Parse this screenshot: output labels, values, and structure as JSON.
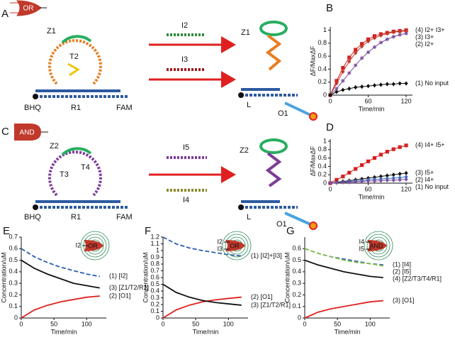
{
  "diagrams": {
    "A": {
      "panel": "A",
      "gate": "OR",
      "hairpin": "Z1",
      "target": "T2",
      "quencher": "BHQ",
      "reporter": "R1",
      "fluor": "FAM",
      "input1": "I2",
      "input2": "I3",
      "product": "Z1",
      "linker": "L",
      "output": "O1"
    },
    "C": {
      "panel": "C",
      "gate": "AND",
      "hairpin": "Z2",
      "target1": "T3",
      "target2": "T4",
      "quencher": "BHQ",
      "reporter": "R1",
      "fluor": "FAM",
      "input1": "I5",
      "input2": "I4",
      "product": "Z2",
      "linker": "L",
      "output": "O1"
    }
  },
  "chart_data": [
    {
      "type": "line",
      "panel": "B",
      "xlabel": "Time/min",
      "ylabel": "ΔF/MaxΔF",
      "xlim": [
        0,
        130
      ],
      "xticks": [
        0,
        60,
        120
      ],
      "ylim": [
        0,
        1.05
      ],
      "yticks": [
        0,
        0.2,
        0.4,
        0.6,
        0.8,
        1
      ],
      "x": [
        0,
        10,
        20,
        30,
        40,
        50,
        60,
        70,
        80,
        90,
        100,
        110,
        120
      ],
      "series": [
        {
          "name": "(4) I2+  I3+",
          "color": "#d62020",
          "marker": "square",
          "values": [
            0,
            0.22,
            0.42,
            0.58,
            0.7,
            0.79,
            0.86,
            0.91,
            0.94,
            0.96,
            0.98,
            0.99,
            1.0
          ]
        },
        {
          "name": "(3) I3+",
          "color": "#c0392b",
          "marker": "diamond",
          "values": [
            0,
            0.18,
            0.36,
            0.52,
            0.65,
            0.75,
            0.83,
            0.88,
            0.92,
            0.95,
            0.97,
            0.98,
            0.99
          ]
        },
        {
          "name": "(2) I2+",
          "color": "#7b4fa0",
          "marker": "star",
          "values": [
            0,
            0.1,
            0.22,
            0.34,
            0.46,
            0.57,
            0.66,
            0.74,
            0.81,
            0.86,
            0.9,
            0.93,
            0.95
          ]
        },
        {
          "name": "(1) No input",
          "color": "#111111",
          "marker": "diamond",
          "values": [
            0,
            0.05,
            0.08,
            0.1,
            0.12,
            0.13,
            0.14,
            0.15,
            0.16,
            0.17,
            0.17,
            0.18,
            0.18
          ]
        }
      ]
    },
    {
      "type": "line",
      "panel": "D",
      "xlabel": "Time/min",
      "ylabel": "ΔF/MaxΔF",
      "xlim": [
        0,
        130
      ],
      "xticks": [
        0,
        60,
        120
      ],
      "ylim": [
        0,
        1.05
      ],
      "yticks": [
        0,
        0.2,
        0.4,
        0.6,
        0.8,
        1
      ],
      "x": [
        0,
        10,
        20,
        30,
        40,
        50,
        60,
        70,
        80,
        90,
        100,
        110,
        120
      ],
      "series": [
        {
          "name": "(4) I4+  I5+",
          "color": "#d62020",
          "marker": "square",
          "values": [
            0,
            0.08,
            0.16,
            0.25,
            0.34,
            0.43,
            0.52,
            0.6,
            0.68,
            0.75,
            0.81,
            0.86,
            0.9
          ]
        },
        {
          "name": "(3) I5+",
          "color": "#111111",
          "marker": "diamond",
          "values": [
            0,
            0.02,
            0.04,
            0.06,
            0.08,
            0.1,
            0.12,
            0.14,
            0.16,
            0.18,
            0.2,
            0.22,
            0.24
          ]
        },
        {
          "name": "(2) I4+",
          "color": "#3b6fc0",
          "marker": "diamond",
          "values": [
            0,
            0.01,
            0.02,
            0.04,
            0.05,
            0.06,
            0.08,
            0.09,
            0.1,
            0.11,
            0.12,
            0.13,
            0.15
          ]
        },
        {
          "name": "(1) No input",
          "color": "#7b4fa0",
          "marker": "diamond",
          "values": [
            0,
            0.01,
            0.02,
            0.02,
            0.03,
            0.04,
            0.05,
            0.05,
            0.06,
            0.07,
            0.07,
            0.08,
            0.09
          ]
        }
      ]
    },
    {
      "type": "line",
      "panel": "E",
      "xlabel": "Time/min",
      "ylabel": "Concentration/uM",
      "xlim": [
        0,
        130
      ],
      "xticks": [
        0,
        50,
        100
      ],
      "ylim": [
        0,
        0.7
      ],
      "yticks": [
        0,
        0.1,
        0.2,
        0.3,
        0.4,
        0.5,
        0.6,
        0.7
      ],
      "gate": {
        "label": "OR",
        "inputs": [
          "I2"
        ]
      },
      "x": [
        0,
        20,
        40,
        60,
        80,
        100,
        120
      ],
      "series": [
        {
          "name": "(1) [I2]",
          "color": "#2a5db0",
          "dash": true,
          "values": [
            0.6,
            0.53,
            0.48,
            0.44,
            0.41,
            0.38,
            0.36
          ]
        },
        {
          "name": "(3) [Z1/T2/R1]",
          "color": "#111111",
          "values": [
            0.5,
            0.43,
            0.38,
            0.34,
            0.3,
            0.28,
            0.26
          ]
        },
        {
          "name": "(2) [O1]",
          "color": "#e02020",
          "values": [
            0,
            0.07,
            0.11,
            0.14,
            0.16,
            0.18,
            0.19
          ]
        }
      ]
    },
    {
      "type": "line",
      "panel": "F",
      "xlabel": "Time/min",
      "ylabel": "Concentration/uM",
      "xlim": [
        0,
        130
      ],
      "xticks": [
        0,
        50,
        100
      ],
      "ylim": [
        0,
        1.2
      ],
      "yticks": [
        0,
        0.1,
        0.2,
        0.3,
        0.4,
        0.5,
        0.6,
        0.7,
        0.8,
        0.9,
        1,
        1.1,
        1.2
      ],
      "gate": {
        "label": "OR",
        "inputs": [
          "I2",
          "I3"
        ]
      },
      "x": [
        0,
        20,
        40,
        60,
        80,
        100,
        120
      ],
      "series": [
        {
          "name": "(1) [I2]+[I3]",
          "color": "#2a5db0",
          "dash": true,
          "values": [
            1.2,
            1.1,
            1.04,
            1.0,
            0.97,
            0.94,
            0.92
          ]
        },
        {
          "name": "(2) [O1]",
          "color": "#e02020",
          "values": [
            0,
            0.12,
            0.19,
            0.24,
            0.27,
            0.29,
            0.31
          ]
        },
        {
          "name": "(3) [Z1/T2/R1]",
          "color": "#111111",
          "values": [
            0.5,
            0.38,
            0.31,
            0.26,
            0.23,
            0.21,
            0.19
          ]
        }
      ]
    },
    {
      "type": "line",
      "panel": "G",
      "xlabel": "Time/min",
      "ylabel": "Concentration/uM",
      "xlim": [
        0,
        130
      ],
      "xticks": [
        0,
        50,
        100
      ],
      "ylim": [
        0,
        0.7
      ],
      "yticks": [
        0,
        0.1,
        0.2,
        0.3,
        0.4,
        0.5,
        0.6
      ],
      "gate": {
        "label": "AND",
        "inputs": [
          "I4",
          "I5"
        ]
      },
      "x": [
        0,
        20,
        40,
        60,
        80,
        100,
        120
      ],
      "series": [
        {
          "name": "(1) [I4]",
          "color": "#2a5db0",
          "dash": true,
          "values": [
            0.6,
            0.56,
            0.53,
            0.51,
            0.49,
            0.47,
            0.46
          ]
        },
        {
          "name": "(2) [I5]",
          "color": "#8bc34a",
          "dash": true,
          "values": [
            0.6,
            0.56,
            0.53,
            0.5,
            0.48,
            0.47,
            0.45
          ]
        },
        {
          "name": "(4) [Z2/T3/T4/R1]",
          "color": "#111111",
          "values": [
            0.5,
            0.46,
            0.43,
            0.4,
            0.38,
            0.36,
            0.35
          ]
        },
        {
          "name": "(3) [O1]",
          "color": "#e02020",
          "values": [
            0,
            0.05,
            0.08,
            0.1,
            0.12,
            0.14,
            0.15
          ]
        }
      ]
    }
  ]
}
